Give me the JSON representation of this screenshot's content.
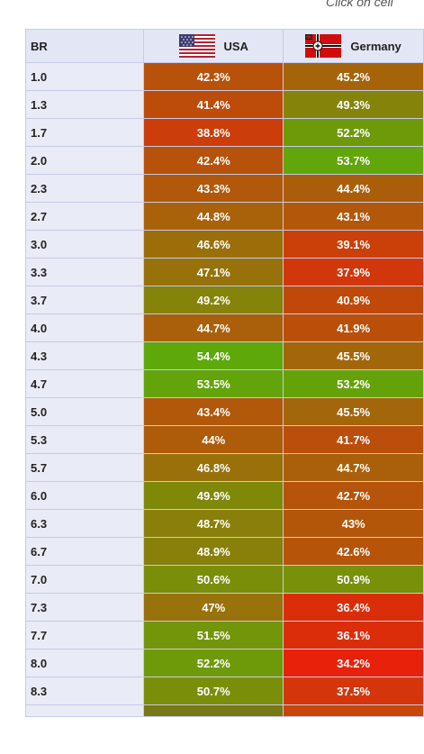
{
  "hint": "Click on cell",
  "table": {
    "col_br": "BR",
    "nations": [
      {
        "name": "USA",
        "flag_icon": "usa-flag-icon"
      },
      {
        "name": "Germany",
        "flag_icon": "germany-flag-icon"
      }
    ],
    "rows": [
      {
        "br": "1.0",
        "usa": "42.3%",
        "ger": "45.2%"
      },
      {
        "br": "1.3",
        "usa": "41.4%",
        "ger": "49.3%"
      },
      {
        "br": "1.7",
        "usa": "38.8%",
        "ger": "52.2%"
      },
      {
        "br": "2.0",
        "usa": "42.4%",
        "ger": "53.7%"
      },
      {
        "br": "2.3",
        "usa": "43.3%",
        "ger": "44.4%"
      },
      {
        "br": "2.7",
        "usa": "44.8%",
        "ger": "43.1%"
      },
      {
        "br": "3.0",
        "usa": "46.6%",
        "ger": "39.1%"
      },
      {
        "br": "3.3",
        "usa": "47.1%",
        "ger": "37.9%"
      },
      {
        "br": "3.7",
        "usa": "49.2%",
        "ger": "40.9%"
      },
      {
        "br": "4.0",
        "usa": "44.7%",
        "ger": "41.9%"
      },
      {
        "br": "4.3",
        "usa": "54.4%",
        "ger": "45.5%"
      },
      {
        "br": "4.7",
        "usa": "53.5%",
        "ger": "53.2%"
      },
      {
        "br": "5.0",
        "usa": "43.4%",
        "ger": "45.5%"
      },
      {
        "br": "5.3",
        "usa": "44%",
        "ger": "41.7%"
      },
      {
        "br": "5.7",
        "usa": "46.8%",
        "ger": "44.7%"
      },
      {
        "br": "6.0",
        "usa": "49.9%",
        "ger": "42.7%"
      },
      {
        "br": "6.3",
        "usa": "48.7%",
        "ger": "43%"
      },
      {
        "br": "6.7",
        "usa": "48.9%",
        "ger": "42.6%"
      },
      {
        "br": "7.0",
        "usa": "50.6%",
        "ger": "50.9%"
      },
      {
        "br": "7.3",
        "usa": "47%",
        "ger": "36.4%"
      },
      {
        "br": "7.7",
        "usa": "51.5%",
        "ger": "36.1%"
      },
      {
        "br": "8.0",
        "usa": "52.2%",
        "ger": "34.2%"
      },
      {
        "br": "8.3",
        "usa": "50.7%",
        "ger": "37.5%"
      }
    ]
  },
  "colors": {
    "low": "#e8200a",
    "mid": "#a8620a",
    "high": "#5fa80a",
    "header_bg": "#e3e6f4",
    "border": "#c6cbe8"
  }
}
